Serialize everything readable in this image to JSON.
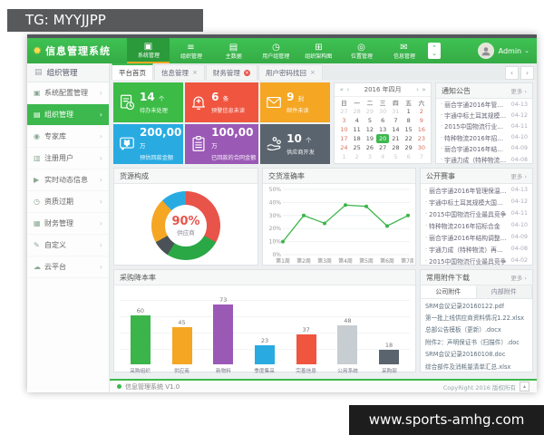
{
  "watermarks": {
    "top": "TG: MYYJJPP",
    "bottom": "www.sports-amhg.com"
  },
  "icons": {
    "star": "✹",
    "monitor": "▣",
    "list": "≡",
    "database": "▤",
    "clock": "◷",
    "grid": "⊞",
    "location": "◎",
    "mail": "✉",
    "target": "◉",
    "grid2": "▥",
    "play": "▶",
    "finance": "▦",
    "pencil": "✎",
    "cloud": "☁",
    "chevron_right": "›",
    "close": "×",
    "caret_down": "⌄",
    "caret_up": "⌃",
    "arrow_left": "‹",
    "arrow_right": "›",
    "cal_prev2": "«",
    "cal_prev": "‹",
    "cal_next": "›",
    "cal_next2": "»",
    "bullet": "·",
    "triangle_up": "▴"
  },
  "app": {
    "logo_title": "信息管理系统",
    "nav": {
      "user": "Admin",
      "items": [
        {
          "label": "系统管理",
          "icon": "monitor",
          "active": true
        },
        {
          "label": "组织管理",
          "icon": "list",
          "active": false
        },
        {
          "label": "主数据",
          "icon": "database",
          "active": false
        },
        {
          "label": "用户组管理",
          "icon": "clock",
          "active": false
        },
        {
          "label": "组织架构图",
          "icon": "grid",
          "active": false
        },
        {
          "label": "位置管理",
          "icon": "location",
          "active": false
        },
        {
          "label": "信息管理",
          "icon": "mail",
          "active": false
        }
      ]
    },
    "sidebar": {
      "header": "组织管理",
      "items": [
        {
          "label": "系统配置管理",
          "icon": "monitor",
          "active": false
        },
        {
          "label": "组织管理",
          "icon": "database",
          "active": true
        },
        {
          "label": "专家库",
          "icon": "target",
          "active": false
        },
        {
          "label": "注册用户",
          "icon": "grid2",
          "active": false
        },
        {
          "label": "实时动态信息",
          "icon": "play",
          "active": false
        },
        {
          "label": "资质过期",
          "icon": "clock",
          "active": false
        },
        {
          "label": "财务管理",
          "icon": "finance",
          "active": false
        },
        {
          "label": "自定义",
          "icon": "pencil",
          "active": false
        },
        {
          "label": "云平台",
          "icon": "cloud",
          "active": false
        }
      ]
    },
    "tabs": [
      {
        "label": "平台首页",
        "active": true,
        "closable": false,
        "alert": false
      },
      {
        "label": "信息管理",
        "active": false,
        "closable": true,
        "alert": false
      },
      {
        "label": "财务管理",
        "active": false,
        "closable": true,
        "alert": true
      },
      {
        "label": "用户密码找回",
        "active": false,
        "closable": true,
        "alert": false
      }
    ],
    "cards": [
      {
        "num": "14",
        "unit": "个",
        "label": "待办未处理",
        "color": "#3dbb47",
        "icon": "doc-clock"
      },
      {
        "num": "6",
        "unit": "条",
        "label": "预警信息未读",
        "color": "#f0553f",
        "icon": "bell"
      },
      {
        "num": "9",
        "unit": "封",
        "label": "邮件未读",
        "color": "#f5a623",
        "icon": "mail"
      },
      {
        "num": "200,00",
        "unit": "万",
        "label": "预估回款金额",
        "color": "#29abe2",
        "icon": "yuan"
      },
      {
        "num": "100,00",
        "unit": "万",
        "label": "已回款的合同金额",
        "color": "#9b59b6",
        "icon": "clipboard"
      },
      {
        "num": "10",
        "unit": "个",
        "label": "供应商开发",
        "color": "#5a646e",
        "icon": "hand"
      }
    ],
    "calendar": {
      "title": "2016 年四月",
      "day_names": [
        "日",
        "一",
        "二",
        "三",
        "四",
        "五",
        "六"
      ],
      "weeks": [
        [
          27,
          28,
          29,
          30,
          31,
          1,
          2
        ],
        [
          3,
          4,
          5,
          6,
          7,
          8,
          9
        ],
        [
          10,
          11,
          12,
          13,
          14,
          15,
          16
        ],
        [
          17,
          18,
          19,
          20,
          21,
          22,
          23
        ],
        [
          24,
          25,
          26,
          27,
          28,
          29,
          30
        ],
        [
          1,
          2,
          3,
          4,
          5,
          6,
          7
        ]
      ],
      "selected": 20,
      "selected_row": 3
    },
    "panels": {
      "notices": {
        "title": "通知公告",
        "more": "更多 ›",
        "items": [
          {
            "t": "丽合宇通2016年管理保温格局",
            "d": "04-13"
          },
          {
            "t": "宇通中标土耳其规模大国网运",
            "d": "04-12"
          },
          {
            "t": "2015中国物流行业最具竞争",
            "d": "04-11"
          },
          {
            "t": "特种物流2016年招标合金",
            "d": "04-10"
          },
          {
            "t": "丽合宇通2016年结构调整动态",
            "d": "04-09"
          },
          {
            "t": "宇通力成（特种物流）再次中",
            "d": "04-08"
          }
        ]
      },
      "events": {
        "title": "公开赛事",
        "more": "更多 ›",
        "items": [
          {
            "t": "丽合宇通2016年管理保温格局",
            "d": "04-13"
          },
          {
            "t": "宇通中标土耳其规模大国网运",
            "d": "04-12"
          },
          {
            "t": "2015中国物流行业最具竞争",
            "d": "04-11"
          },
          {
            "t": "特种物流2016年招标合金",
            "d": "04-10"
          },
          {
            "t": "丽合宇通2016年结构调整动态",
            "d": "04-09"
          },
          {
            "t": "宇通力成（特种物流）再次中",
            "d": "04-08"
          },
          {
            "t": "2015中国物流行业最具竞争",
            "d": "04-02"
          }
        ]
      },
      "files": {
        "title": "常用附件下载",
        "more": "更多 ›",
        "tabs": [
          {
            "label": "公司附件",
            "active": true
          },
          {
            "label": "内部附件",
            "active": false
          }
        ],
        "items": [
          "SRM会议记录20160122.pdf",
          "第一批上线供应商资料情况1.22.xlsx",
          "总部公告模板（更新）.docx",
          "附件2：声明保证书（扫描件）.doc",
          "SRM会议记录20160108.doc",
          "综合部件及消耗量清单汇总.xlsx"
        ]
      }
    },
    "footer": {
      "left": "信息管理系统 V1.0",
      "right": "CopyRight 2016  版权所有"
    }
  },
  "chart_data": [
    {
      "type": "pie",
      "title": "货源构成",
      "center_label": "90%",
      "center_sub": "供应商",
      "slices": [
        {
          "pct": 33,
          "color": "#e8534a"
        },
        {
          "pct": 26,
          "color": "#2aa845"
        },
        {
          "pct": 8,
          "color": "#4a5258"
        },
        {
          "pct": 21,
          "color": "#f5a623"
        },
        {
          "pct": 12,
          "color": "#29abe2"
        }
      ]
    },
    {
      "type": "line",
      "title": "交货准确率",
      "x": [
        "第1周",
        "第2周",
        "第3周",
        "第4周",
        "第5周",
        "第6周",
        "第7周"
      ],
      "values": [
        10,
        30,
        24,
        38,
        37,
        22,
        30
      ],
      "ylim": [
        0,
        50
      ],
      "yticks": [
        "0%",
        "10%",
        "20%",
        "30%",
        "40%",
        "50%"
      ],
      "color": "#3bb54a",
      "grid": true,
      "legend": false
    },
    {
      "type": "bar",
      "title": "采购降本率",
      "categories": [
        "采购组织",
        "供应商",
        "新物料",
        "季度集采",
        "完善信息",
        "公用系统",
        "采购部"
      ],
      "values": [
        60,
        45,
        73,
        23,
        37,
        48,
        18
      ],
      "colors": [
        "#3bb54a",
        "#f5a623",
        "#9b59b6",
        "#29abe2",
        "#f0553f",
        "#c8cdd2",
        "#5a646e"
      ],
      "ylim": [
        0,
        80
      ]
    }
  ]
}
